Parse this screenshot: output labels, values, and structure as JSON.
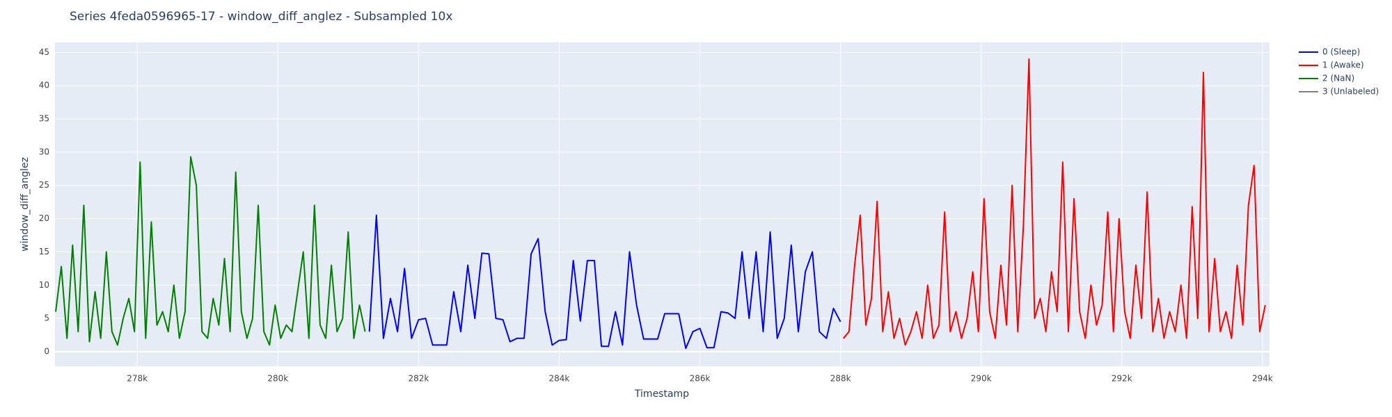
{
  "chart_data": {
    "type": "line",
    "title": "Series 4feda0596965-17 - window_diff_anglez - Subsampled 10x",
    "x_label": "Timestamp",
    "y_label": "window_diff_anglez",
    "xlim": [
      276830,
      294100
    ],
    "xticks": [
      {
        "value": 278000,
        "label": "278k"
      },
      {
        "value": 280000,
        "label": "280k"
      },
      {
        "value": 282000,
        "label": "282k"
      },
      {
        "value": 284000,
        "label": "284k"
      },
      {
        "value": 286000,
        "label": "286k"
      },
      {
        "value": 288000,
        "label": "288k"
      },
      {
        "value": 290000,
        "label": "290k"
      },
      {
        "value": 292000,
        "label": "292k"
      },
      {
        "value": 294000,
        "label": "294k"
      }
    ],
    "ylim": [
      -2.2,
      46.5
    ],
    "yticks": [
      0,
      5,
      10,
      15,
      20,
      25,
      30,
      35,
      40,
      45
    ],
    "grid": true,
    "legend": "right",
    "series": [
      {
        "name": "0 (Sleep)",
        "color": "#0000ff",
        "x": [
          281300,
          281400,
          281500,
          281600,
          281700,
          281800,
          281900,
          282000,
          282100,
          282200,
          282300,
          282400,
          282500,
          282600,
          282700,
          282800,
          282900,
          283000,
          283100,
          283200,
          283300,
          283400,
          283500,
          283600,
          283700,
          283800,
          283900,
          284000,
          284100,
          284200,
          284300,
          284400,
          284500,
          284600,
          284700,
          284800,
          284900,
          285000,
          285100,
          285200,
          285300,
          285400,
          285500,
          285600,
          285700,
          285800,
          285900,
          286000,
          286100,
          286200,
          286300,
          286400,
          286500,
          286600,
          286700,
          286800,
          286900,
          287000,
          287100,
          287200,
          287300,
          287400,
          287500,
          287600,
          287700,
          287800,
          287900,
          288000
        ],
        "values": [
          3,
          20.5,
          2,
          8,
          3,
          12.5,
          2,
          4.8,
          5,
          1,
          1,
          1,
          9,
          3,
          13,
          5,
          14.8,
          14.7,
          5,
          4.8,
          1.5,
          2,
          2,
          14.7,
          17,
          6,
          1,
          1.7,
          1.8,
          13.7,
          4.6,
          13.7,
          13.7,
          0.8,
          0.8,
          6,
          1,
          15,
          7,
          1.9,
          1.9,
          1.9,
          5.7,
          5.7,
          5.7,
          0.5,
          3,
          3.5,
          0.6,
          0.6,
          6,
          5.8,
          5,
          15,
          5,
          15,
          3,
          18,
          2,
          5,
          16,
          3,
          12,
          15,
          3,
          2,
          6.5,
          4.5
        ]
      },
      {
        "name": "1 (Awake)",
        "color": "#ff0000",
        "x": [
          288040,
          288120,
          288200,
          288280,
          288360,
          288440,
          288520,
          288600,
          288680,
          288760,
          288840,
          288920,
          289000,
          289080,
          289160,
          289240,
          289320,
          289400,
          289480,
          289560,
          289640,
          289720,
          289800,
          289880,
          289960,
          290040,
          290120,
          290200,
          290280,
          290360,
          290440,
          290520,
          290600,
          290680,
          290760,
          290840,
          290920,
          291000,
          291080,
          291160,
          291240,
          291320,
          291400,
          291480,
          291560,
          291640,
          291720,
          291800,
          291880,
          291960,
          292040,
          292120,
          292200,
          292280,
          292360,
          292440,
          292520,
          292600,
          292680,
          292760,
          292840,
          292920,
          293000,
          293080,
          293160,
          293240,
          293320,
          293400,
          293480,
          293560,
          293640,
          293720,
          293800,
          293880,
          293960,
          294040
        ],
        "values": [
          2,
          3,
          13,
          20.5,
          4,
          8,
          22.6,
          3,
          9,
          2,
          5,
          1,
          3,
          6,
          2,
          10,
          2,
          4,
          21,
          3,
          6,
          2,
          5,
          12,
          3,
          23,
          6,
          2,
          13,
          4,
          25,
          3,
          19,
          44,
          5,
          8,
          3,
          12,
          6,
          28.5,
          3,
          23,
          6,
          2,
          10,
          4,
          7,
          21,
          3,
          20,
          6,
          2,
          13,
          5,
          24,
          3,
          8,
          2,
          6,
          3,
          10,
          2,
          21.8,
          5,
          42,
          3,
          14,
          3,
          6,
          2,
          13,
          4,
          22,
          28,
          3,
          7
        ]
      },
      {
        "name": "2 (NaN)",
        "color": "#008000",
        "x": [
          276840,
          276920,
          277000,
          277080,
          277160,
          277240,
          277320,
          277400,
          277480,
          277560,
          277640,
          277720,
          277800,
          277880,
          277960,
          278040,
          278120,
          278200,
          278280,
          278360,
          278440,
          278520,
          278600,
          278680,
          278760,
          278840,
          278920,
          279000,
          279080,
          279160,
          279240,
          279320,
          279400,
          279480,
          279560,
          279640,
          279720,
          279800,
          279880,
          279960,
          280040,
          280120,
          280200,
          280280,
          280360,
          280440,
          280520,
          280600,
          280680,
          280760,
          280840,
          280920,
          281000,
          281080,
          281160,
          281240
        ],
        "values": [
          6,
          12.8,
          2,
          16,
          3,
          22,
          1.5,
          9,
          2,
          15,
          3,
          1,
          5,
          8,
          3,
          28.5,
          2,
          19.5,
          4,
          6,
          3,
          10,
          2,
          6,
          29.3,
          25,
          3,
          2,
          8,
          4,
          14,
          3,
          27,
          6,
          2,
          5,
          22,
          3,
          1,
          7,
          2,
          4,
          3,
          9,
          15,
          2,
          22,
          4,
          2,
          13,
          3,
          5,
          18,
          2,
          7,
          3
        ]
      },
      {
        "name": "3 (Unlabeled)",
        "color": "#808080",
        "x": [],
        "values": []
      }
    ]
  }
}
